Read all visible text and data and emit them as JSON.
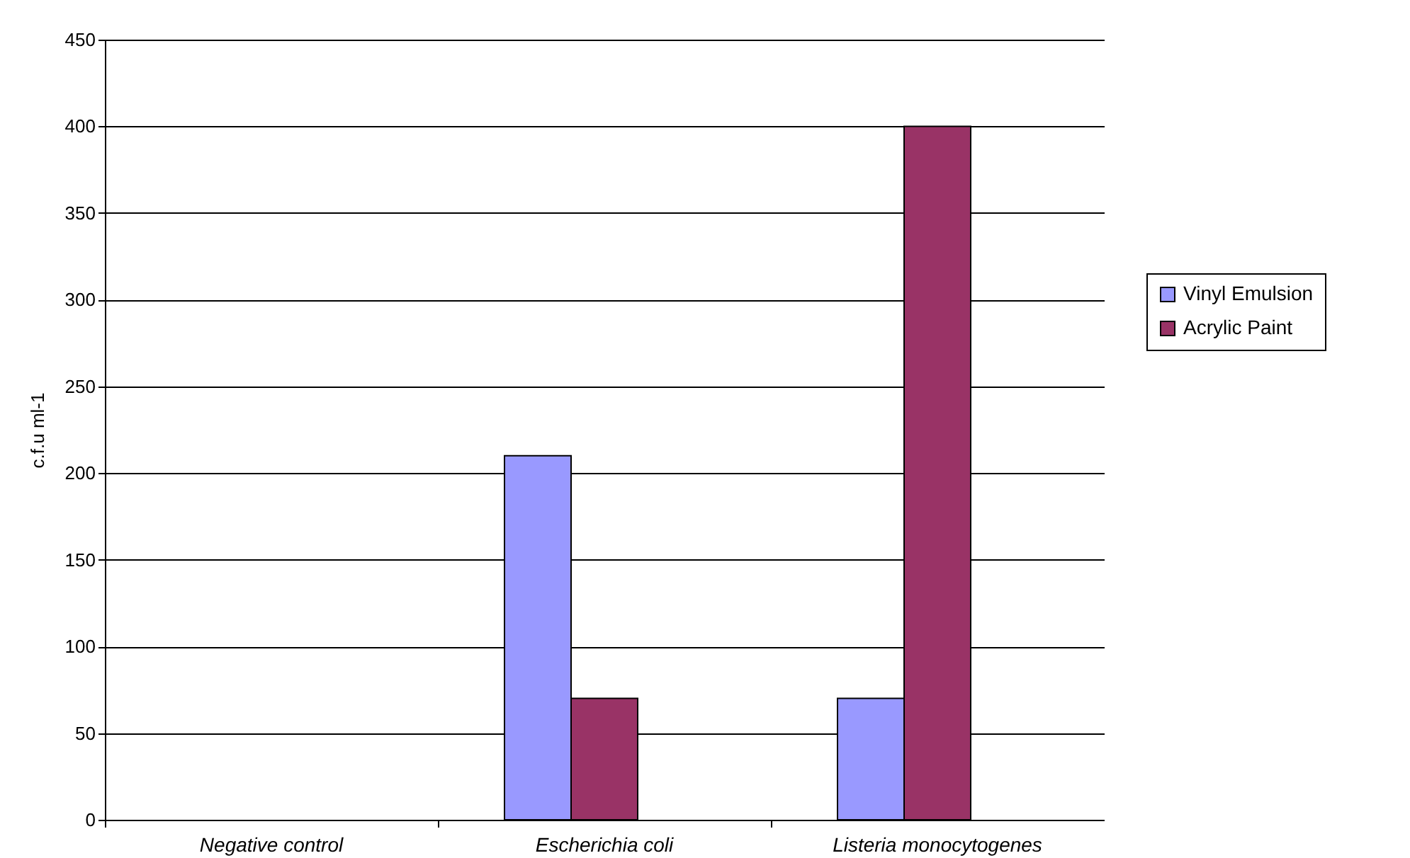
{
  "chart_data": {
    "type": "bar",
    "ylabel": "c.f.u ml-1",
    "categories": [
      "Negative control",
      "Escherichia coli",
      "Listeria monocytogenes"
    ],
    "series": [
      {
        "name": "Vinyl Emulsion",
        "color": "#9999ff",
        "values": [
          0,
          210,
          70
        ]
      },
      {
        "name": "Acrylic Paint",
        "color": "#993366",
        "values": [
          0,
          70,
          400
        ]
      },
      {
        "color": "#ffffcc",
        "values": [
          0,
          0,
          0
        ]
      }
    ],
    "ylim": [
      0,
      450
    ],
    "yticks": [
      0,
      50,
      100,
      150,
      200,
      250,
      300,
      350,
      400,
      450
    ],
    "grid": "y",
    "legend": "right"
  }
}
